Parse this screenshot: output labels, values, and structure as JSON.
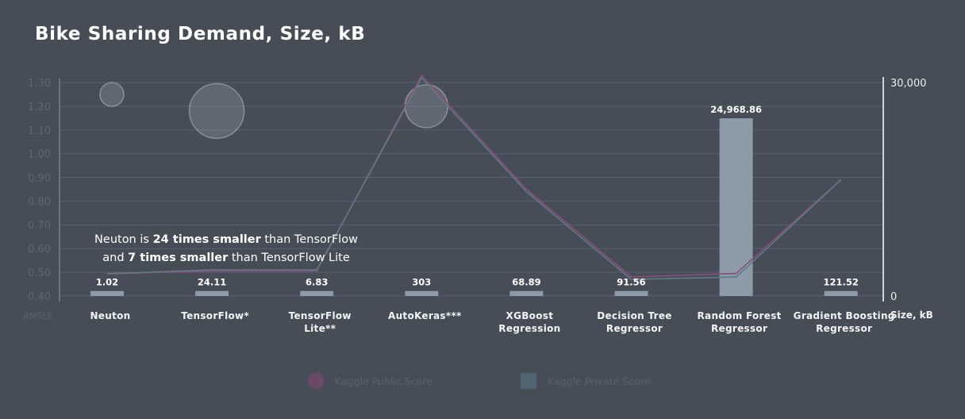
{
  "title": "Bike Sharing Demand, Size, kB",
  "annotation": {
    "line1_prefix": "Neuton is ",
    "line1_bold": "24 times smaller",
    "line1_suffix": " than TensorFlow",
    "line2_prefix": "and ",
    "line2_bold": "7 times smaller",
    "line2_suffix": " than TensorFlow Lite"
  },
  "legend": [
    {
      "label": "Kaggle Public Score",
      "color": "#6a4a64",
      "shape": "circle"
    },
    {
      "label": "Kaggle Private Score",
      "color": "#4f6571",
      "shape": "square"
    }
  ],
  "colors": {
    "background": "#474d57",
    "bar": "#8d9aa8",
    "public_line": "#8a4f78",
    "private_line": "#5f7a89",
    "bubble_fill": "#8c939c",
    "grid": "#596070"
  },
  "chart_data": {
    "type": "bar",
    "categories": [
      [
        "Neuton"
      ],
      [
        "TensorFlow*"
      ],
      [
        "TensorFlow",
        "Lite**"
      ],
      [
        "AutoKeras***"
      ],
      [
        "XGBoost",
        "Regression"
      ],
      [
        "Decision Tree",
        "Regressor"
      ],
      [
        "Random Forest",
        "Regressor"
      ],
      [
        "Gradient Boosting",
        "Regressor"
      ]
    ],
    "size_kb": {
      "values": [
        1.02,
        24.11,
        6.83,
        303,
        68.89,
        91.56,
        24968.86,
        121.52
      ],
      "labels": [
        "1.02",
        "24.11",
        "6.83",
        "303",
        "68.89",
        "91.56",
        "24,968.86",
        "121.52"
      ]
    },
    "rmsle_public": [
      0.494,
      0.505,
      0.505,
      1.33,
      0.85,
      0.48,
      0.495,
      0.89
    ],
    "rmsle_private": [
      0.494,
      0.51,
      0.51,
      1.32,
      0.84,
      0.47,
      0.48,
      0.89
    ],
    "bubbles": [
      {
        "category_index": 0,
        "rmsle": 1.25,
        "relative_size": 1.0
      },
      {
        "category_index": 1,
        "rmsle": 1.18,
        "relative_size": 2.3
      },
      {
        "category_index": 3,
        "rmsle": 1.2,
        "relative_size": 1.8
      }
    ],
    "left_axis": {
      "label": "RMSLE",
      "ylim": [
        0.4,
        1.3
      ],
      "ticks": [
        "1.30",
        "1.20",
        "1.10",
        "1.00",
        "0.90",
        "0.80",
        "0.70",
        "0.60",
        "0.50",
        "0.40"
      ]
    },
    "right_axis": {
      "label": "Size, kB",
      "ylim": [
        0,
        30000
      ],
      "ticks": [
        "30,000",
        "0"
      ]
    },
    "bar_floor_kb": 700,
    "grid": true
  }
}
